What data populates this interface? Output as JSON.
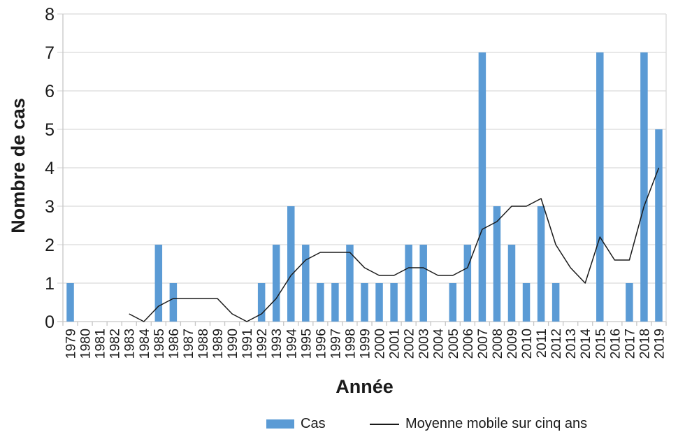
{
  "colors": {
    "bar": "#5b9bd5",
    "line": "#1a1a1a",
    "grid": "#d9d9d9",
    "axis": "#c6c6c6",
    "text": "#1a1a1a"
  },
  "chart_data": {
    "type": "bar",
    "title": "",
    "xlabel": "Année",
    "ylabel": "Nombre de cas",
    "ylim": [
      0,
      8
    ],
    "yticks": [
      0,
      1,
      2,
      3,
      4,
      5,
      6,
      7,
      8
    ],
    "grid": "horizontal",
    "legend_position": "bottom",
    "categories": [
      1979,
      1980,
      1981,
      1982,
      1983,
      1984,
      1985,
      1986,
      1987,
      1988,
      1989,
      1990,
      1991,
      1992,
      1993,
      1994,
      1995,
      1996,
      1997,
      1998,
      1999,
      2000,
      2001,
      2002,
      2003,
      2004,
      2005,
      2006,
      2007,
      2008,
      2009,
      2010,
      2011,
      2012,
      2013,
      2014,
      2015,
      2016,
      2017,
      2018,
      2019
    ],
    "series": [
      {
        "name": "Cas",
        "type": "bar",
        "color": "#5b9bd5",
        "values": [
          1,
          0,
          0,
          0,
          0,
          0,
          2,
          1,
          0,
          0,
          0,
          0,
          0,
          1,
          2,
          3,
          2,
          1,
          1,
          2,
          1,
          1,
          1,
          2,
          2,
          0,
          1,
          2,
          7,
          3,
          2,
          1,
          3,
          1,
          0,
          0,
          7,
          0,
          1,
          7,
          5
        ]
      },
      {
        "name": "Moyenne mobile sur cinq ans",
        "type": "line",
        "color": "#1a1a1a",
        "values": [
          null,
          null,
          null,
          null,
          0.2,
          0,
          0.4,
          0.6,
          0.6,
          0.6,
          0.6,
          0.2,
          0,
          0.2,
          0.6,
          1.2,
          1.6,
          1.8,
          1.8,
          1.8,
          1.4,
          1.2,
          1.2,
          1.4,
          1.4,
          1.2,
          1.2,
          1.4,
          2.4,
          2.6,
          3,
          3,
          3.2,
          2,
          1.4,
          1,
          2.2,
          1.6,
          1.6,
          3,
          4
        ]
      }
    ]
  }
}
